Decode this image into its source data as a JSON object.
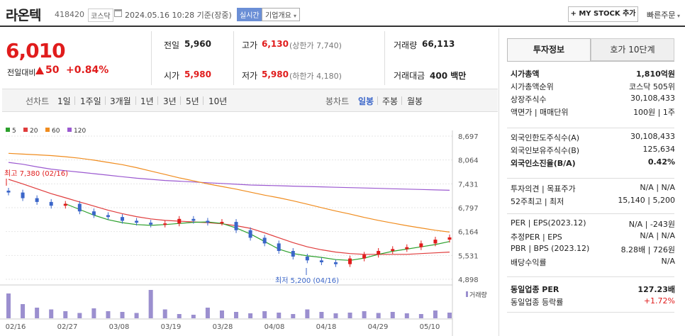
{
  "header": {
    "stock_name": "라온텍",
    "stock_code": "418420",
    "market": "코스닥",
    "datetime": "2024.05.16 10:28 기준(장중)",
    "realtime_badge": "실시간",
    "corp_info_label": "기업개요",
    "mystock_label": "+ MY STOCK 추가",
    "quick_order_label": "빠른주문"
  },
  "price": {
    "current": "6,010",
    "change_label": "전일대비",
    "change_value": "50",
    "change_pct": "+0.84%",
    "prev_close_label": "전일",
    "prev_close": "5,960",
    "open_label": "시가",
    "open": "5,980",
    "high_label": "고가",
    "high": "6,130",
    "upper_limit": "(상한가 7,740)",
    "low_label": "저가",
    "low": "5,980",
    "lower_limit": "(하한가 4,180)",
    "volume_label": "거래량",
    "volume": "66,113",
    "amount_label": "거래대금",
    "amount": "400 백만"
  },
  "chart_tabs": {
    "line_label": "선차트",
    "line_items": [
      "1일",
      "1주일",
      "3개월",
      "1년",
      "3년",
      "5년",
      "10년"
    ],
    "candle_label": "봉차트",
    "candle_items": [
      "일봉",
      "주봉",
      "월봉"
    ],
    "active": "일봉"
  },
  "chart_data": {
    "type": "line",
    "legend": [
      {
        "name": "5",
        "color": "#2ca02c"
      },
      {
        "name": "20",
        "color": "#e03c3c"
      },
      {
        "name": "60",
        "color": "#f08c1e"
      },
      {
        "name": "120",
        "color": "#9b59d0"
      }
    ],
    "y_ticks": [
      "8,697",
      "8,064",
      "7,431",
      "6,797",
      "6,164",
      "5,531",
      "4,898"
    ],
    "ylim": [
      4898,
      8697
    ],
    "x_ticks": [
      "02/16",
      "02/27",
      "03/08",
      "03/19",
      "03/28",
      "04/08",
      "04/18",
      "04/29",
      "05/10"
    ],
    "annotations": {
      "high": "최고 7,380 (02/16)",
      "low": "최저 5,200 (04/16)"
    },
    "volume_label": "거래량",
    "ma120": [
      8000,
      7950,
      7880,
      7820,
      7780,
      7740,
      7700,
      7660,
      7620,
      7580,
      7550,
      7520,
      7500,
      7480,
      7460,
      7440,
      7420,
      7400,
      7390,
      7380,
      7370,
      7360,
      7350,
      7340,
      7330,
      7320,
      7310,
      7300,
      7290,
      7280,
      7270,
      7260
    ],
    "ma60": [
      8240,
      8220,
      8200,
      8180,
      8150,
      8110,
      8060,
      8000,
      7940,
      7860,
      7770,
      7680,
      7590,
      7510,
      7430,
      7360,
      7290,
      7210,
      7130,
      7060,
      6980,
      6890,
      6800,
      6710,
      6630,
      6540,
      6460,
      6390,
      6320,
      6260,
      6200,
      6150
    ],
    "ma20": [
      7550,
      7430,
      7300,
      7170,
      7060,
      6950,
      6840,
      6730,
      6640,
      6560,
      6500,
      6460,
      6440,
      6420,
      6400,
      6370,
      6320,
      6250,
      6130,
      6000,
      5870,
      5760,
      5680,
      5620,
      5580,
      5560,
      5560,
      5560,
      5560,
      5580,
      5600,
      5620
    ],
    "ma5": [
      null,
      null,
      null,
      null,
      6900,
      6750,
      6600,
      6480,
      6400,
      6350,
      6330,
      6350,
      6380,
      6410,
      6420,
      6380,
      6260,
      6100,
      5900,
      5700,
      5580,
      5520,
      5480,
      5420,
      5400,
      5460,
      5560,
      5640,
      5700,
      5760,
      5820,
      5900
    ],
    "closes": [
      7200,
      7050,
      6950,
      6850,
      6900,
      6700,
      6600,
      6550,
      6450,
      6400,
      6350,
      6380,
      6500,
      6450,
      6400,
      6420,
      6200,
      6000,
      5850,
      5650,
      5500,
      5400,
      5350,
      5300,
      5450,
      5550,
      5650,
      5700,
      5750,
      5850,
      5950,
      6010
    ],
    "volumes": [
      70,
      40,
      30,
      25,
      20,
      15,
      28,
      20,
      18,
      15,
      80,
      25,
      12,
      10,
      30,
      22,
      18,
      14,
      20,
      16,
      12,
      25,
      18,
      14,
      16,
      20,
      15,
      18,
      14,
      12,
      22,
      16
    ]
  },
  "right_panel": {
    "tabs": [
      "투자정보",
      "호가 10단계"
    ],
    "rows1": [
      {
        "k": "시가총액",
        "v": "1,810억원",
        "bold": true
      },
      {
        "k": "시가총액순위",
        "v": "코스닥 505위"
      },
      {
        "k": "상장주식수",
        "v": "30,108,433"
      },
      {
        "k": "액면가 | 매매단위",
        "v": "100원 | 1주"
      }
    ],
    "rows2": [
      {
        "k": "외국인한도주식수(A)",
        "v": "30,108,433"
      },
      {
        "k": "외국인보유주식수(B)",
        "v": "125,634"
      },
      {
        "k": "외국인소진율(B/A)",
        "v": "0.42%",
        "bold": true
      }
    ],
    "rows3": [
      {
        "k": "투자의견 | 목표주가",
        "v": "N/A | N/A"
      },
      {
        "k": "52주최고 | 최저",
        "v": "15,140 | 5,200"
      }
    ],
    "rows4": [
      {
        "k": "PER | EPS(2023.12)",
        "v": "N/A | -243원"
      },
      {
        "k": "추정PER | EPS",
        "v": "N/A | N/A"
      },
      {
        "k": "PBR | BPS (2023.12)",
        "v": "8.28배 | 726원"
      },
      {
        "k": "배당수익률",
        "v": "N/A"
      }
    ],
    "rows5": [
      {
        "k": "동일업종 PER",
        "v": "127.23배",
        "bold": true
      },
      {
        "k": "동일업종 등락률",
        "v": "+1.72%",
        "red": true
      }
    ]
  }
}
